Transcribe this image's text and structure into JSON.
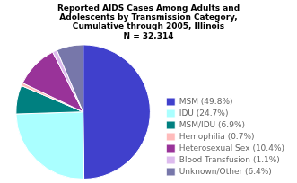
{
  "chart_data": {
    "type": "pie",
    "title": "Reported AIDS Cases Among Adults and\nAdolescents by Transmission Category,\nCumulative through 2005, Illinois\nN = 32,314",
    "categories": [
      "MSM (49.8%)",
      "IDU (24.7%)",
      "MSM/IDU (6.9%)",
      "Hemophilia (0.7%)",
      "Heterosexual Sex (10.4%)",
      "Blood Transfusion (1.1%)",
      "Unknown/Other (6.4%)"
    ],
    "values": [
      49.8,
      24.7,
      6.9,
      0.7,
      10.4,
      1.1,
      6.4
    ],
    "colors": [
      "#4040cc",
      "#aaffff",
      "#008080",
      "#ffbbbb",
      "#993399",
      "#ddbbee",
      "#7777aa"
    ],
    "legend": "lower right"
  }
}
